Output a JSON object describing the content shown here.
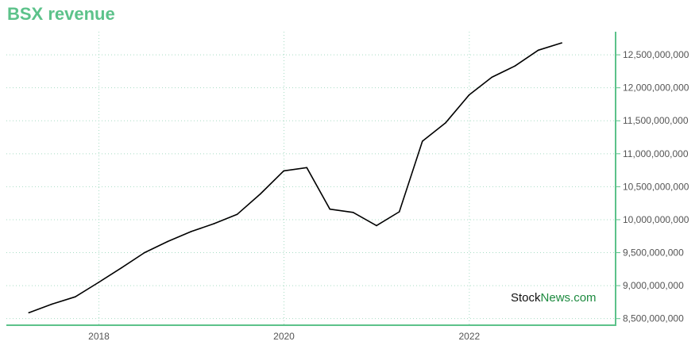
{
  "chart_data": {
    "type": "line",
    "title": "BSX revenue",
    "xlabel": "",
    "ylabel": "",
    "x_tick_labels": [
      "2018",
      "2020",
      "2022"
    ],
    "x_tick_values": [
      "2018-01-01",
      "2020-01-01",
      "2022-01-01"
    ],
    "y_tick_labels": [
      "8,500,000,000",
      "9,000,000,000",
      "9,500,000,000",
      "10,000,000,000",
      "10,500,000,000",
      "11,000,000,000",
      "11,500,000,000",
      "12,000,000,000",
      "12,500,000,000"
    ],
    "y_tick_values": [
      8500000000,
      9000000000,
      9500000000,
      10000000000,
      10500000000,
      11000000000,
      11500000000,
      12000000000,
      12500000000
    ],
    "xlim": [
      "2017-01-01",
      "2023-08-01"
    ],
    "ylim": [
      8400000000,
      12850000000
    ],
    "y_axis_position": "right",
    "grid": true,
    "legend": "none",
    "series": [
      {
        "color": "#000000",
        "points": [
          {
            "x": "2017-03-31",
            "y": 8590000000
          },
          {
            "x": "2017-06-30",
            "y": 8720000000
          },
          {
            "x": "2017-09-30",
            "y": 8830000000
          },
          {
            "x": "2017-12-31",
            "y": 9050000000
          },
          {
            "x": "2018-03-31",
            "y": 9270000000
          },
          {
            "x": "2018-06-30",
            "y": 9500000000
          },
          {
            "x": "2018-09-30",
            "y": 9670000000
          },
          {
            "x": "2018-12-31",
            "y": 9820000000
          },
          {
            "x": "2019-03-31",
            "y": 9940000000
          },
          {
            "x": "2019-06-30",
            "y": 10080000000
          },
          {
            "x": "2019-09-30",
            "y": 10390000000
          },
          {
            "x": "2019-12-31",
            "y": 10740000000
          },
          {
            "x": "2020-03-31",
            "y": 10790000000
          },
          {
            "x": "2020-06-30",
            "y": 10160000000
          },
          {
            "x": "2020-09-30",
            "y": 10110000000
          },
          {
            "x": "2020-12-31",
            "y": 9910000000
          },
          {
            "x": "2021-03-31",
            "y": 10120000000
          },
          {
            "x": "2021-06-30",
            "y": 11190000000
          },
          {
            "x": "2021-09-30",
            "y": 11470000000
          },
          {
            "x": "2021-12-31",
            "y": 11890000000
          },
          {
            "x": "2022-03-31",
            "y": 12160000000
          },
          {
            "x": "2022-06-30",
            "y": 12330000000
          },
          {
            "x": "2022-09-30",
            "y": 12570000000
          },
          {
            "x": "2022-12-31",
            "y": 12680000000
          }
        ]
      }
    ]
  },
  "watermark": {
    "part1": "Stock",
    "part2": "News",
    "part3": ".com"
  },
  "colors": {
    "accent": "#5cc28a",
    "line": "#000000",
    "grid": "#a8dcc4",
    "tick_text": "#555555",
    "watermark_dark": "#111111",
    "watermark_green": "#1d8a3f"
  }
}
